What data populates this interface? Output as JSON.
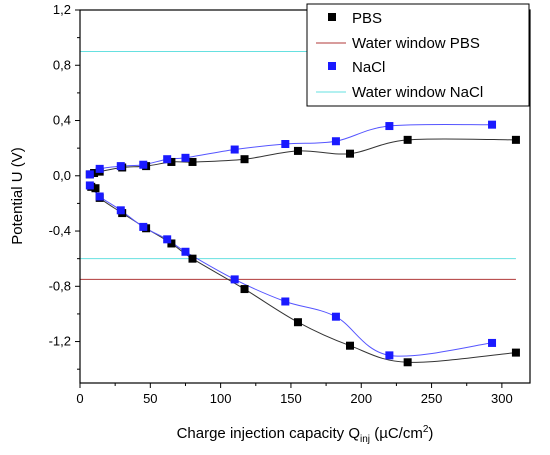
{
  "chart_data": {
    "type": "scatter",
    "xlabel_main": "Charge injection capacity Q",
    "xlabel_sub": "inj",
    "xlabel_unit": " (µC/cm",
    "xlabel_sup": "2",
    "xlabel_close": ")",
    "ylabel": "Potential U (V)",
    "xlim": [
      0,
      320
    ],
    "ylim": [
      -1.5,
      1.2
    ],
    "x_ticks": [
      0,
      50,
      100,
      150,
      200,
      250,
      300
    ],
    "y_ticks": [
      1.2,
      0.8,
      0.4,
      0.0,
      -0.4,
      -0.8,
      -1.2
    ],
    "x_tick_labels": [
      "0",
      "50",
      "100",
      "150",
      "200",
      "250",
      "300"
    ],
    "y_tick_labels": [
      "1,2",
      "0,8",
      "0,4",
      "0,0",
      "-0,4",
      "-0,8",
      "-1,2"
    ],
    "grid": false,
    "legend_position": "top-right",
    "series": [
      {
        "name": "PBS",
        "marker": "square",
        "color": "#000000",
        "points_anodic": [
          [
            7,
            0.01
          ],
          [
            10,
            0.02
          ],
          [
            14,
            0.03
          ],
          [
            30,
            0.06
          ],
          [
            47,
            0.07
          ],
          [
            65,
            0.1
          ],
          [
            80,
            0.1
          ],
          [
            117,
            0.12
          ],
          [
            155,
            0.18
          ],
          [
            192,
            0.16
          ],
          [
            233,
            0.26
          ],
          [
            310,
            0.26
          ]
        ],
        "points_cathodic": [
          [
            8,
            -0.08
          ],
          [
            11,
            -0.09
          ],
          [
            14,
            -0.16
          ],
          [
            30,
            -0.27
          ],
          [
            47,
            -0.38
          ],
          [
            65,
            -0.49
          ],
          [
            80,
            -0.6
          ],
          [
            117,
            -0.82
          ],
          [
            155,
            -1.06
          ],
          [
            192,
            -1.23
          ],
          [
            233,
            -1.35
          ],
          [
            310,
            -1.28
          ]
        ]
      },
      {
        "name": "Water window PBS",
        "type": "hline",
        "color": "#b03a3a",
        "y": [
          1.2,
          -0.75
        ]
      },
      {
        "name": "NaCl",
        "marker": "square",
        "color": "#1a1aff",
        "points_anodic": [
          [
            7,
            0.01
          ],
          [
            14,
            0.05
          ],
          [
            29,
            0.07
          ],
          [
            45,
            0.08
          ],
          [
            62,
            0.12
          ],
          [
            75,
            0.13
          ],
          [
            110,
            0.19
          ],
          [
            146,
            0.23
          ],
          [
            182,
            0.25
          ],
          [
            220,
            0.36
          ],
          [
            293,
            0.37
          ]
        ],
        "points_cathodic": [
          [
            7,
            -0.07
          ],
          [
            14,
            -0.15
          ],
          [
            29,
            -0.25
          ],
          [
            45,
            -0.37
          ],
          [
            62,
            -0.46
          ],
          [
            75,
            -0.55
          ],
          [
            110,
            -0.75
          ],
          [
            146,
            -0.91
          ],
          [
            182,
            -1.02
          ],
          [
            220,
            -1.3
          ],
          [
            293,
            -1.21
          ]
        ]
      },
      {
        "name": "Water window NaCl",
        "type": "hline",
        "color": "#66e0e0",
        "y": [
          0.9,
          -0.6
        ]
      }
    ]
  }
}
